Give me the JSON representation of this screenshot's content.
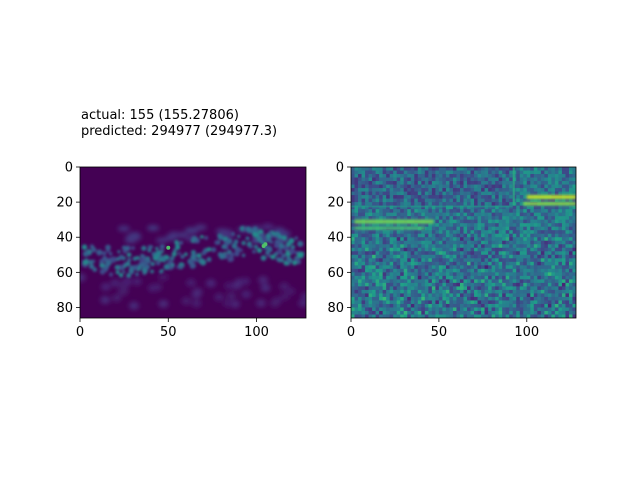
{
  "figure": {
    "title_line1": "actual: 155 (155.27806)",
    "title_line2": "predicted: 294977 (294977.3)"
  },
  "chart_data": [
    {
      "type": "heatmap",
      "title": "",
      "colormap": "viridis",
      "x_range": [
        0,
        128
      ],
      "y_range": [
        0,
        86
      ],
      "xticks": [
        0,
        50,
        100
      ],
      "yticks": [
        0,
        20,
        40,
        60,
        80
      ],
      "description_values": "mostly near-minimum (dark purple) with a speckled band of brighter spots around rows 42-62; a few bright green points near (50,46) and (105,44)"
    },
    {
      "type": "heatmap",
      "title": "",
      "colormap": "viridis",
      "x_range": [
        0,
        128
      ],
      "y_range": [
        0,
        86
      ],
      "xticks": [
        0,
        50,
        100
      ],
      "yticks": [
        0,
        20,
        40,
        60,
        80
      ],
      "description_values": "mid-range teal/green texture throughout; darker region top-left rows 0-20; bright yellow streaks near rows 30-36 at left and rows 14-22 at right (x 100-128)"
    }
  ]
}
